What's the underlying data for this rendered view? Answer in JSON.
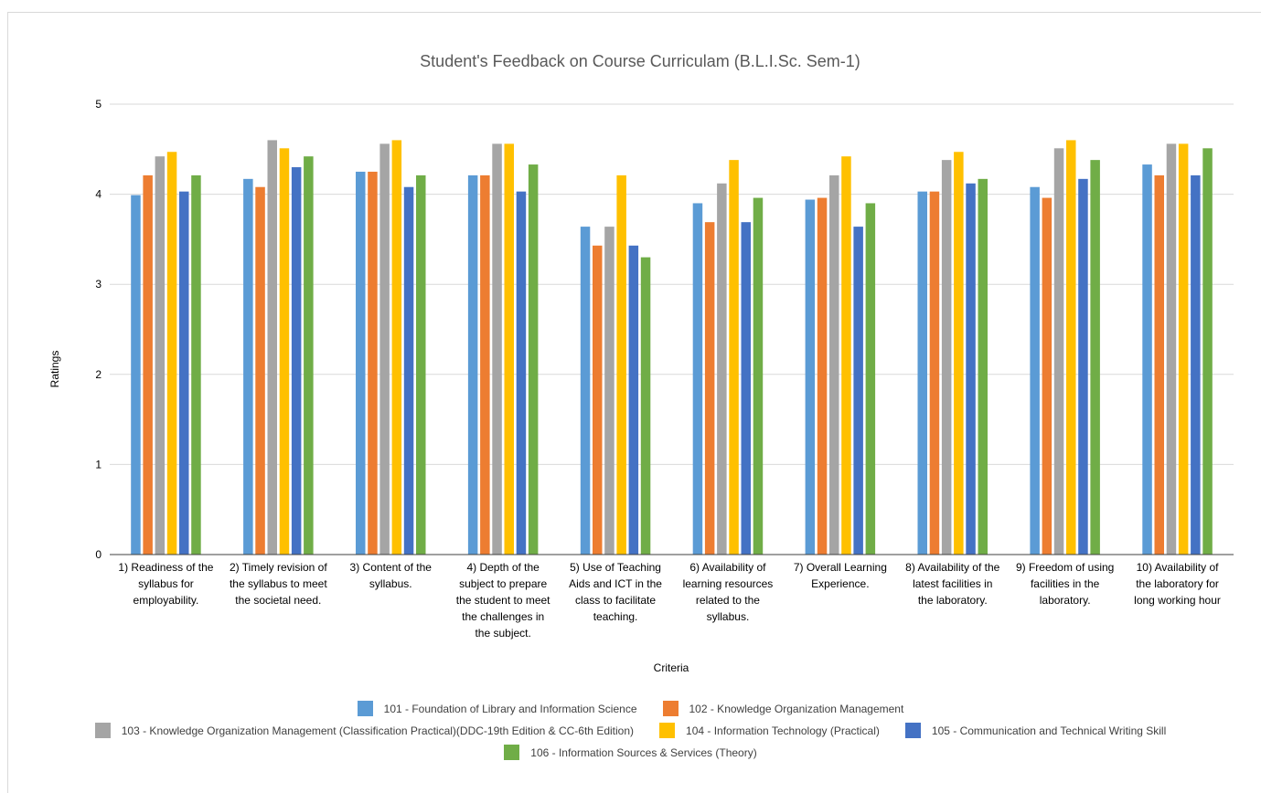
{
  "chart_data": {
    "type": "bar",
    "title": "Student's Feedback on Course Curriculam (B.L.I.Sc. Sem-1)",
    "xlabel": "Criteria",
    "ylabel": "Ratings",
    "ylim": [
      0,
      5
    ],
    "yticks": [
      0,
      1,
      2,
      3,
      4,
      5
    ],
    "grid": true,
    "legend": "bottom",
    "categories": [
      [
        "1) Readiness of the",
        "syllabus for",
        "employability."
      ],
      [
        "2) Timely revision of",
        "the syllabus to meet",
        "the societal need."
      ],
      [
        "3) Content of the",
        "syllabus."
      ],
      [
        "4) Depth of the",
        "subject to prepare",
        "the student to meet",
        "the challenges in",
        "the subject."
      ],
      [
        "5) Use of Teaching",
        "Aids and ICT in the",
        "class to facilitate",
        "teaching."
      ],
      [
        "6) Availability of",
        "learning resources",
        "related to the",
        "syllabus."
      ],
      [
        "7) Overall Learning",
        "Experience."
      ],
      [
        "8) Availability of the",
        "latest facilities in",
        "the laboratory."
      ],
      [
        "9) Freedom of using",
        "facilities in the",
        "laboratory."
      ],
      [
        "10) Availability of",
        "the laboratory for",
        "long working hour"
      ]
    ],
    "series": [
      {
        "name": "101 - Foundation of Library and Information Science",
        "color": "#5b9bd5",
        "values": [
          3.99,
          4.17,
          4.25,
          4.21,
          3.64,
          3.9,
          3.94,
          4.03,
          4.08,
          4.33
        ]
      },
      {
        "name": "102 - Knowledge Organization Management",
        "color": "#ed7d31",
        "values": [
          4.21,
          4.08,
          4.25,
          4.21,
          3.43,
          3.69,
          3.96,
          4.03,
          3.96,
          4.21
        ]
      },
      {
        "name": "103 - Knowledge Organization Management (Classification Practical)(DDC-19th Edition & CC-6th Edition)",
        "color": "#a5a5a5",
        "values": [
          4.42,
          4.6,
          4.56,
          4.56,
          3.64,
          4.12,
          4.21,
          4.38,
          4.51,
          4.56
        ]
      },
      {
        "name": "104 - Information Technology (Practical)",
        "color": "#ffc000",
        "values": [
          4.47,
          4.51,
          4.6,
          4.56,
          4.21,
          4.38,
          4.42,
          4.47,
          4.6,
          4.56
        ]
      },
      {
        "name": "105 - Communication and Technical Writing Skill",
        "color": "#4472c4",
        "values": [
          4.03,
          4.3,
          4.08,
          4.03,
          3.43,
          3.69,
          3.64,
          4.12,
          4.17,
          4.21
        ]
      },
      {
        "name": "106 - Information Sources & Services (Theory)",
        "color": "#70ad47",
        "values": [
          4.21,
          4.42,
          4.21,
          4.33,
          3.3,
          3.96,
          3.9,
          4.17,
          4.38,
          4.51
        ]
      }
    ]
  }
}
